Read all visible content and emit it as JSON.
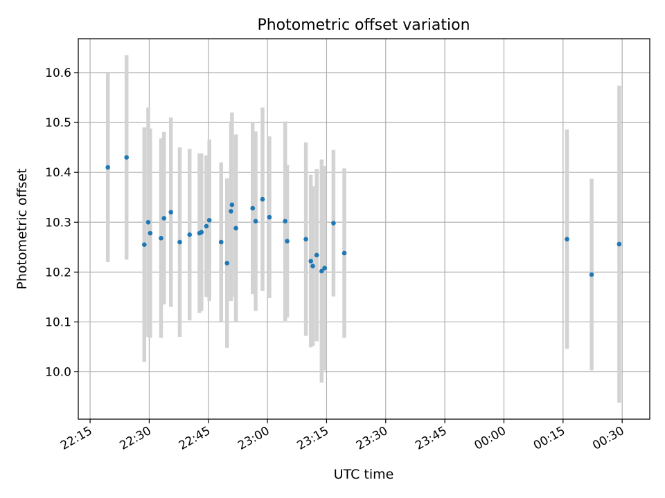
{
  "chart_data": {
    "type": "scatter",
    "title": "Photometric offset variation",
    "xlabel": "UTC time",
    "ylabel": "Photometric offset",
    "grid": true,
    "xlim": [
      "22:12",
      "00:37"
    ],
    "ylim": [
      9.905,
      10.668
    ],
    "x_ticks": [
      "22:15",
      "22:30",
      "22:45",
      "23:00",
      "23:15",
      "23:30",
      "23:45",
      "00:00",
      "00:15",
      "00:30"
    ],
    "y_ticks": [
      "10.0",
      "10.1",
      "10.2",
      "10.3",
      "10.4",
      "10.5",
      "10.6"
    ],
    "colors": {
      "point": "#1f77b4",
      "errorbar": "#d3d3d3",
      "grid": "#b0b0b0"
    },
    "series": [
      {
        "points": [
          {
            "time": "22:19:30",
            "y": 10.41,
            "err": 0.19
          },
          {
            "time": "22:24:15",
            "y": 10.43,
            "err": 0.205
          },
          {
            "time": "22:28:45",
            "y": 10.255,
            "err": 0.235
          },
          {
            "time": "22:29:45",
            "y": 10.3,
            "err": 0.23
          },
          {
            "time": "22:30:15",
            "y": 10.278,
            "err": 0.21
          },
          {
            "time": "22:33:00",
            "y": 10.268,
            "err": 0.2
          },
          {
            "time": "22:33:45",
            "y": 10.308,
            "err": 0.173
          },
          {
            "time": "22:35:30",
            "y": 10.32,
            "err": 0.19
          },
          {
            "time": "22:37:45",
            "y": 10.26,
            "err": 0.19
          },
          {
            "time": "22:40:15",
            "y": 10.275,
            "err": 0.172
          },
          {
            "time": "22:42:45",
            "y": 10.278,
            "err": 0.16
          },
          {
            "time": "22:43:15",
            "y": 10.28,
            "err": 0.158
          },
          {
            "time": "22:44:30",
            "y": 10.292,
            "err": 0.142
          },
          {
            "time": "22:45:15",
            "y": 10.304,
            "err": 0.162
          },
          {
            "time": "22:48:15",
            "y": 10.26,
            "err": 0.16
          },
          {
            "time": "22:49:45",
            "y": 10.218,
            "err": 0.17
          },
          {
            "time": "22:50:45",
            "y": 10.322,
            "err": 0.18
          },
          {
            "time": "22:51:00",
            "y": 10.335,
            "err": 0.185
          },
          {
            "time": "22:52:00",
            "y": 10.288,
            "err": 0.188
          },
          {
            "time": "22:56:15",
            "y": 10.328,
            "err": 0.172
          },
          {
            "time": "22:57:00",
            "y": 10.302,
            "err": 0.18
          },
          {
            "time": "22:58:45",
            "y": 10.346,
            "err": 0.184
          },
          {
            "time": "23:00:30",
            "y": 10.31,
            "err": 0.162
          },
          {
            "time": "23:04:30",
            "y": 10.302,
            "err": 0.2
          },
          {
            "time": "23:05:00",
            "y": 10.262,
            "err": 0.153
          },
          {
            "time": "23:09:45",
            "y": 10.266,
            "err": 0.194
          },
          {
            "time": "23:11:00",
            "y": 10.222,
            "err": 0.173
          },
          {
            "time": "23:11:30",
            "y": 10.212,
            "err": 0.16
          },
          {
            "time": "23:12:30",
            "y": 10.234,
            "err": 0.173
          },
          {
            "time": "23:13:45",
            "y": 10.202,
            "err": 0.224
          },
          {
            "time": "23:14:30",
            "y": 10.208,
            "err": 0.205
          },
          {
            "time": "23:16:45",
            "y": 10.298,
            "err": 0.147
          },
          {
            "time": "23:19:30",
            "y": 10.238,
            "err": 0.17
          },
          {
            "time": "00:16:00",
            "y": 10.266,
            "err": 0.22
          },
          {
            "time": "00:22:15",
            "y": 10.195,
            "err": 0.192
          },
          {
            "time": "00:29:15",
            "y": 10.256,
            "err": 0.318
          }
        ]
      }
    ]
  }
}
